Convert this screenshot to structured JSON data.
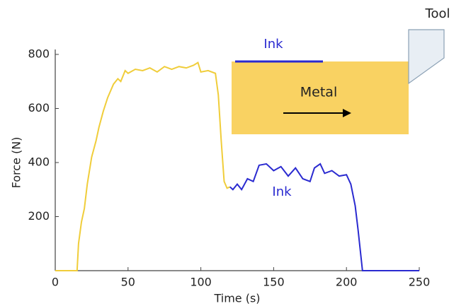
{
  "chart_data": {
    "type": "line",
    "xlabel": "Time (s)",
    "ylabel": "Force (N)",
    "xlim": [
      0,
      250
    ],
    "xticks": [
      0,
      50,
      100,
      150,
      200,
      250
    ],
    "ylim": [
      0,
      800
    ],
    "yticks": [
      200,
      400,
      600,
      800
    ],
    "grid": false,
    "series": [
      {
        "color": "#f0cd3a",
        "x": [
          0,
          15,
          16,
          18,
          20,
          22,
          25,
          28,
          30,
          33,
          36,
          40,
          43,
          45,
          48,
          50,
          55,
          60,
          65,
          70,
          75,
          80,
          85,
          90,
          95,
          98,
          100,
          105,
          110,
          112,
          114,
          116,
          118,
          120
        ],
        "values": [
          0,
          0,
          100,
          180,
          230,
          320,
          420,
          480,
          530,
          590,
          640,
          690,
          710,
          700,
          740,
          730,
          745,
          740,
          750,
          735,
          755,
          745,
          755,
          750,
          760,
          770,
          735,
          740,
          730,
          650,
          480,
          330,
          305,
          310
        ]
      },
      {
        "color": "#2a2ad0",
        "x": [
          120,
          122,
          125,
          128,
          132,
          136,
          140,
          145,
          150,
          155,
          160,
          165,
          170,
          175,
          178,
          182,
          185,
          190,
          195,
          200,
          203,
          206,
          208,
          210,
          211,
          250
        ],
        "values": [
          310,
          300,
          320,
          300,
          340,
          330,
          390,
          395,
          370,
          385,
          350,
          380,
          340,
          330,
          380,
          395,
          360,
          370,
          350,
          355,
          320,
          240,
          150,
          50,
          0,
          0
        ]
      }
    ],
    "annotations": {
      "curve_ink": "Ink",
      "inset_ink": "Ink",
      "metal": "Metal",
      "tool": "Tool"
    }
  }
}
